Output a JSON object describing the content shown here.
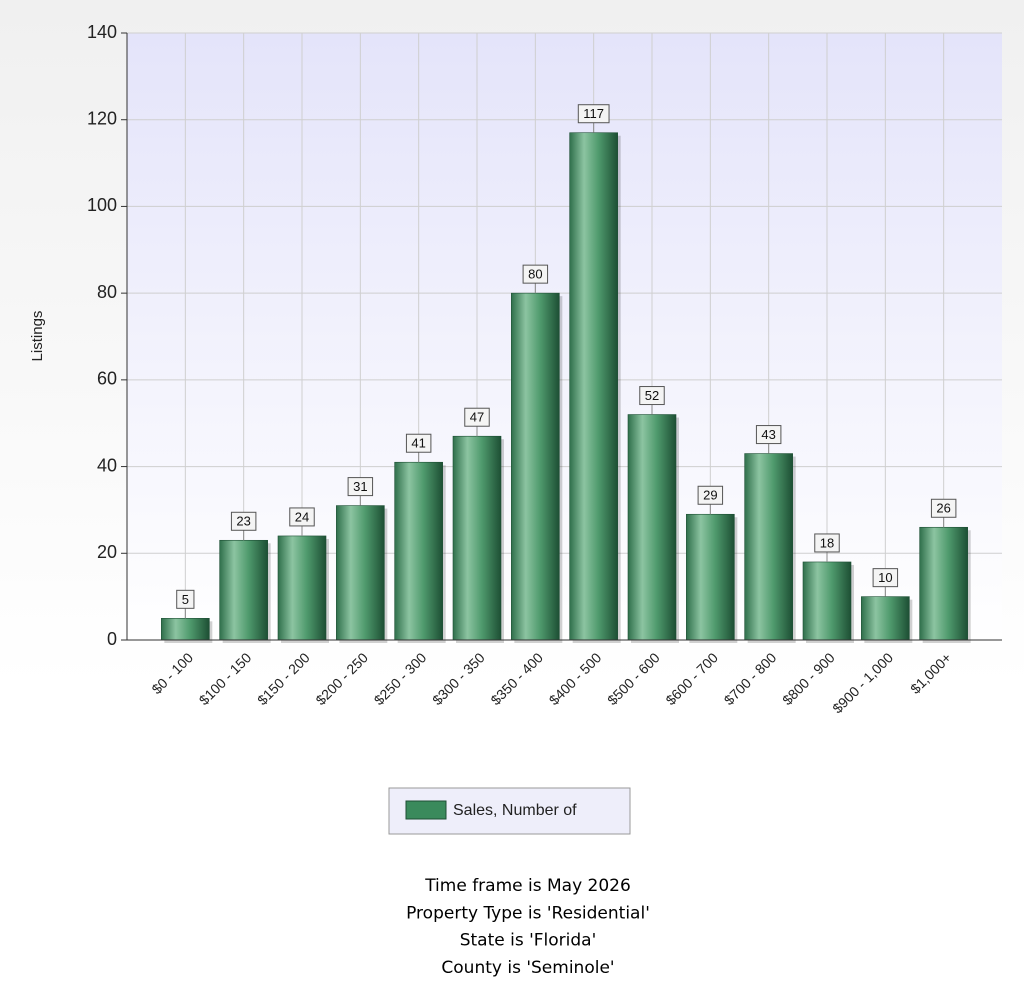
{
  "chart_data": {
    "type": "bar",
    "y_label": "Listings",
    "categories": [
      "$0 - 100",
      "$100 - 150",
      "$150 - 200",
      "$200 - 250",
      "$250 - 300",
      "$300 - 350",
      "$350 - 400",
      "$400 - 500",
      "$500 - 600",
      "$600 - 700",
      "$700 - 800",
      "$800 - 900",
      "$900 - 1,000",
      "$1,000+"
    ],
    "series": [
      {
        "name": "Sales, Number of",
        "color": "#3a8a5c",
        "values": [
          5,
          23,
          24,
          31,
          41,
          47,
          80,
          117,
          52,
          29,
          43,
          18,
          10,
          26
        ]
      }
    ],
    "ylim": [
      0,
      140
    ],
    "yticks": [
      0,
      20,
      40,
      60,
      80,
      100,
      120,
      140
    ],
    "grid": true,
    "notes": [
      "Time frame is May 2026",
      "Property Type is 'Residential'",
      "State is 'Florida'",
      "County is 'Seminole'"
    ]
  }
}
